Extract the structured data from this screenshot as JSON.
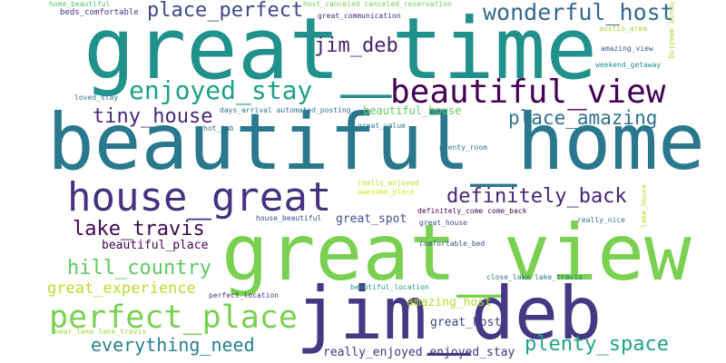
{
  "words": [
    {
      "text": "great_time",
      "color": "#21918c"
    },
    {
      "text": "beautiful_home",
      "color": "#2a788e"
    },
    {
      "text": "great_view",
      "color": "#7ad151"
    },
    {
      "text": "jim_deb",
      "color": "#443983"
    },
    {
      "text": "house_great",
      "color": "#46327e"
    },
    {
      "text": "beautiful_view",
      "color": "#440154"
    },
    {
      "text": "perfect_place",
      "color": "#7ad151"
    },
    {
      "text": "enjoyed_stay",
      "color": "#1fa187"
    },
    {
      "text": "wonderful_host",
      "color": "#31688e"
    },
    {
      "text": "place_perfect",
      "color": "#3e4989"
    },
    {
      "text": "place_amazing",
      "color": "#2c728e"
    },
    {
      "text": "definitely_back",
      "color": "#482475"
    },
    {
      "text": "plenty_space",
      "color": "#20a486"
    },
    {
      "text": "tiny_house",
      "color": "#482878"
    },
    {
      "text": "jim_deb",
      "color": "#482173"
    },
    {
      "text": "lake_travis",
      "color": "#3e0751"
    },
    {
      "text": "hill_country",
      "color": "#5ec962"
    },
    {
      "text": "everything_need",
      "color": "#26828e"
    },
    {
      "text": "great_experience",
      "color": "#b5de2b"
    },
    {
      "text": "beautiful_place",
      "color": "#440154"
    },
    {
      "text": "great_spot",
      "color": "#3b528b"
    },
    {
      "text": "great_hosts",
      "color": "#414487"
    },
    {
      "text": "really_enjoyed enjoyed_stay",
      "color": "#46337e"
    },
    {
      "text": "amazing_host",
      "color": "#addc30"
    },
    {
      "text": "beautiful_house",
      "color": "#5ec962"
    },
    {
      "text": "beds_comfortable",
      "color": "#472d7b"
    },
    {
      "text": "great_communication",
      "color": "#482475"
    },
    {
      "text": "host_canceled canceled_reservation",
      "color": "#6ece58"
    },
    {
      "text": "home_beautiful",
      "color": "#52c569"
    },
    {
      "text": "austin_area",
      "color": "#a2da37"
    },
    {
      "text": "amazing_view",
      "color": "#3b528b"
    },
    {
      "text": "weekend_getaway",
      "color": "#21918c"
    },
    {
      "text": "loved_stay",
      "color": "#2a788e"
    },
    {
      "text": "days_arrival automated_posting",
      "color": "#2c728e"
    },
    {
      "text": "hot_tub",
      "color": "#31688e"
    },
    {
      "text": "great_value",
      "color": "#2a788e"
    },
    {
      "text": "plenty_room",
      "color": "#2a788e"
    },
    {
      "text": "really_enjoyed",
      "color": "#b8de29"
    },
    {
      "text": "awesome_place",
      "color": "#dde318"
    },
    {
      "text": "definitely_come come_back",
      "color": "#440154"
    },
    {
      "text": "house_beautiful",
      "color": "#3e4989"
    },
    {
      "text": "great_house",
      "color": "#3e4c8a"
    },
    {
      "text": "really_nice",
      "color": "#2c728e"
    },
    {
      "text": "comfortable_bed",
      "color": "#3e4c8a"
    },
    {
      "text": "close_lake lake_travis",
      "color": "#2c728e"
    },
    {
      "text": "beautiful_location",
      "color": "#1f998a"
    },
    {
      "text": "perfect_location",
      "color": "#46337e"
    },
    {
      "text": "near_lake lake_travis",
      "color": "#a0da39"
    },
    {
      "text": "house_amazing",
      "color": "#a8db34"
    },
    {
      "text": "lake_house",
      "color": "#b5de2b"
    }
  ]
}
